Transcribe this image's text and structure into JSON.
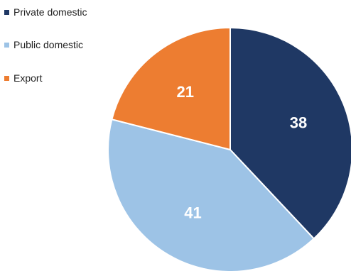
{
  "chart_data": {
    "type": "pie",
    "title": "",
    "categories": [
      "Private domestic",
      "Public domestic",
      "Export"
    ],
    "values": [
      38,
      41,
      21
    ],
    "colors": [
      "#1f3864",
      "#9dc3e6",
      "#ed7d31"
    ],
    "data_labels": [
      "38",
      "41",
      "21"
    ],
    "start_angle_deg": 0,
    "direction": "clockwise",
    "legend_position": "top-left"
  },
  "legend": {
    "items": [
      {
        "label": "Private domestic",
        "color": "#1f3864"
      },
      {
        "label": "Public domestic",
        "color": "#9dc3e6"
      },
      {
        "label": "Export",
        "color": "#ed7d31"
      }
    ]
  }
}
